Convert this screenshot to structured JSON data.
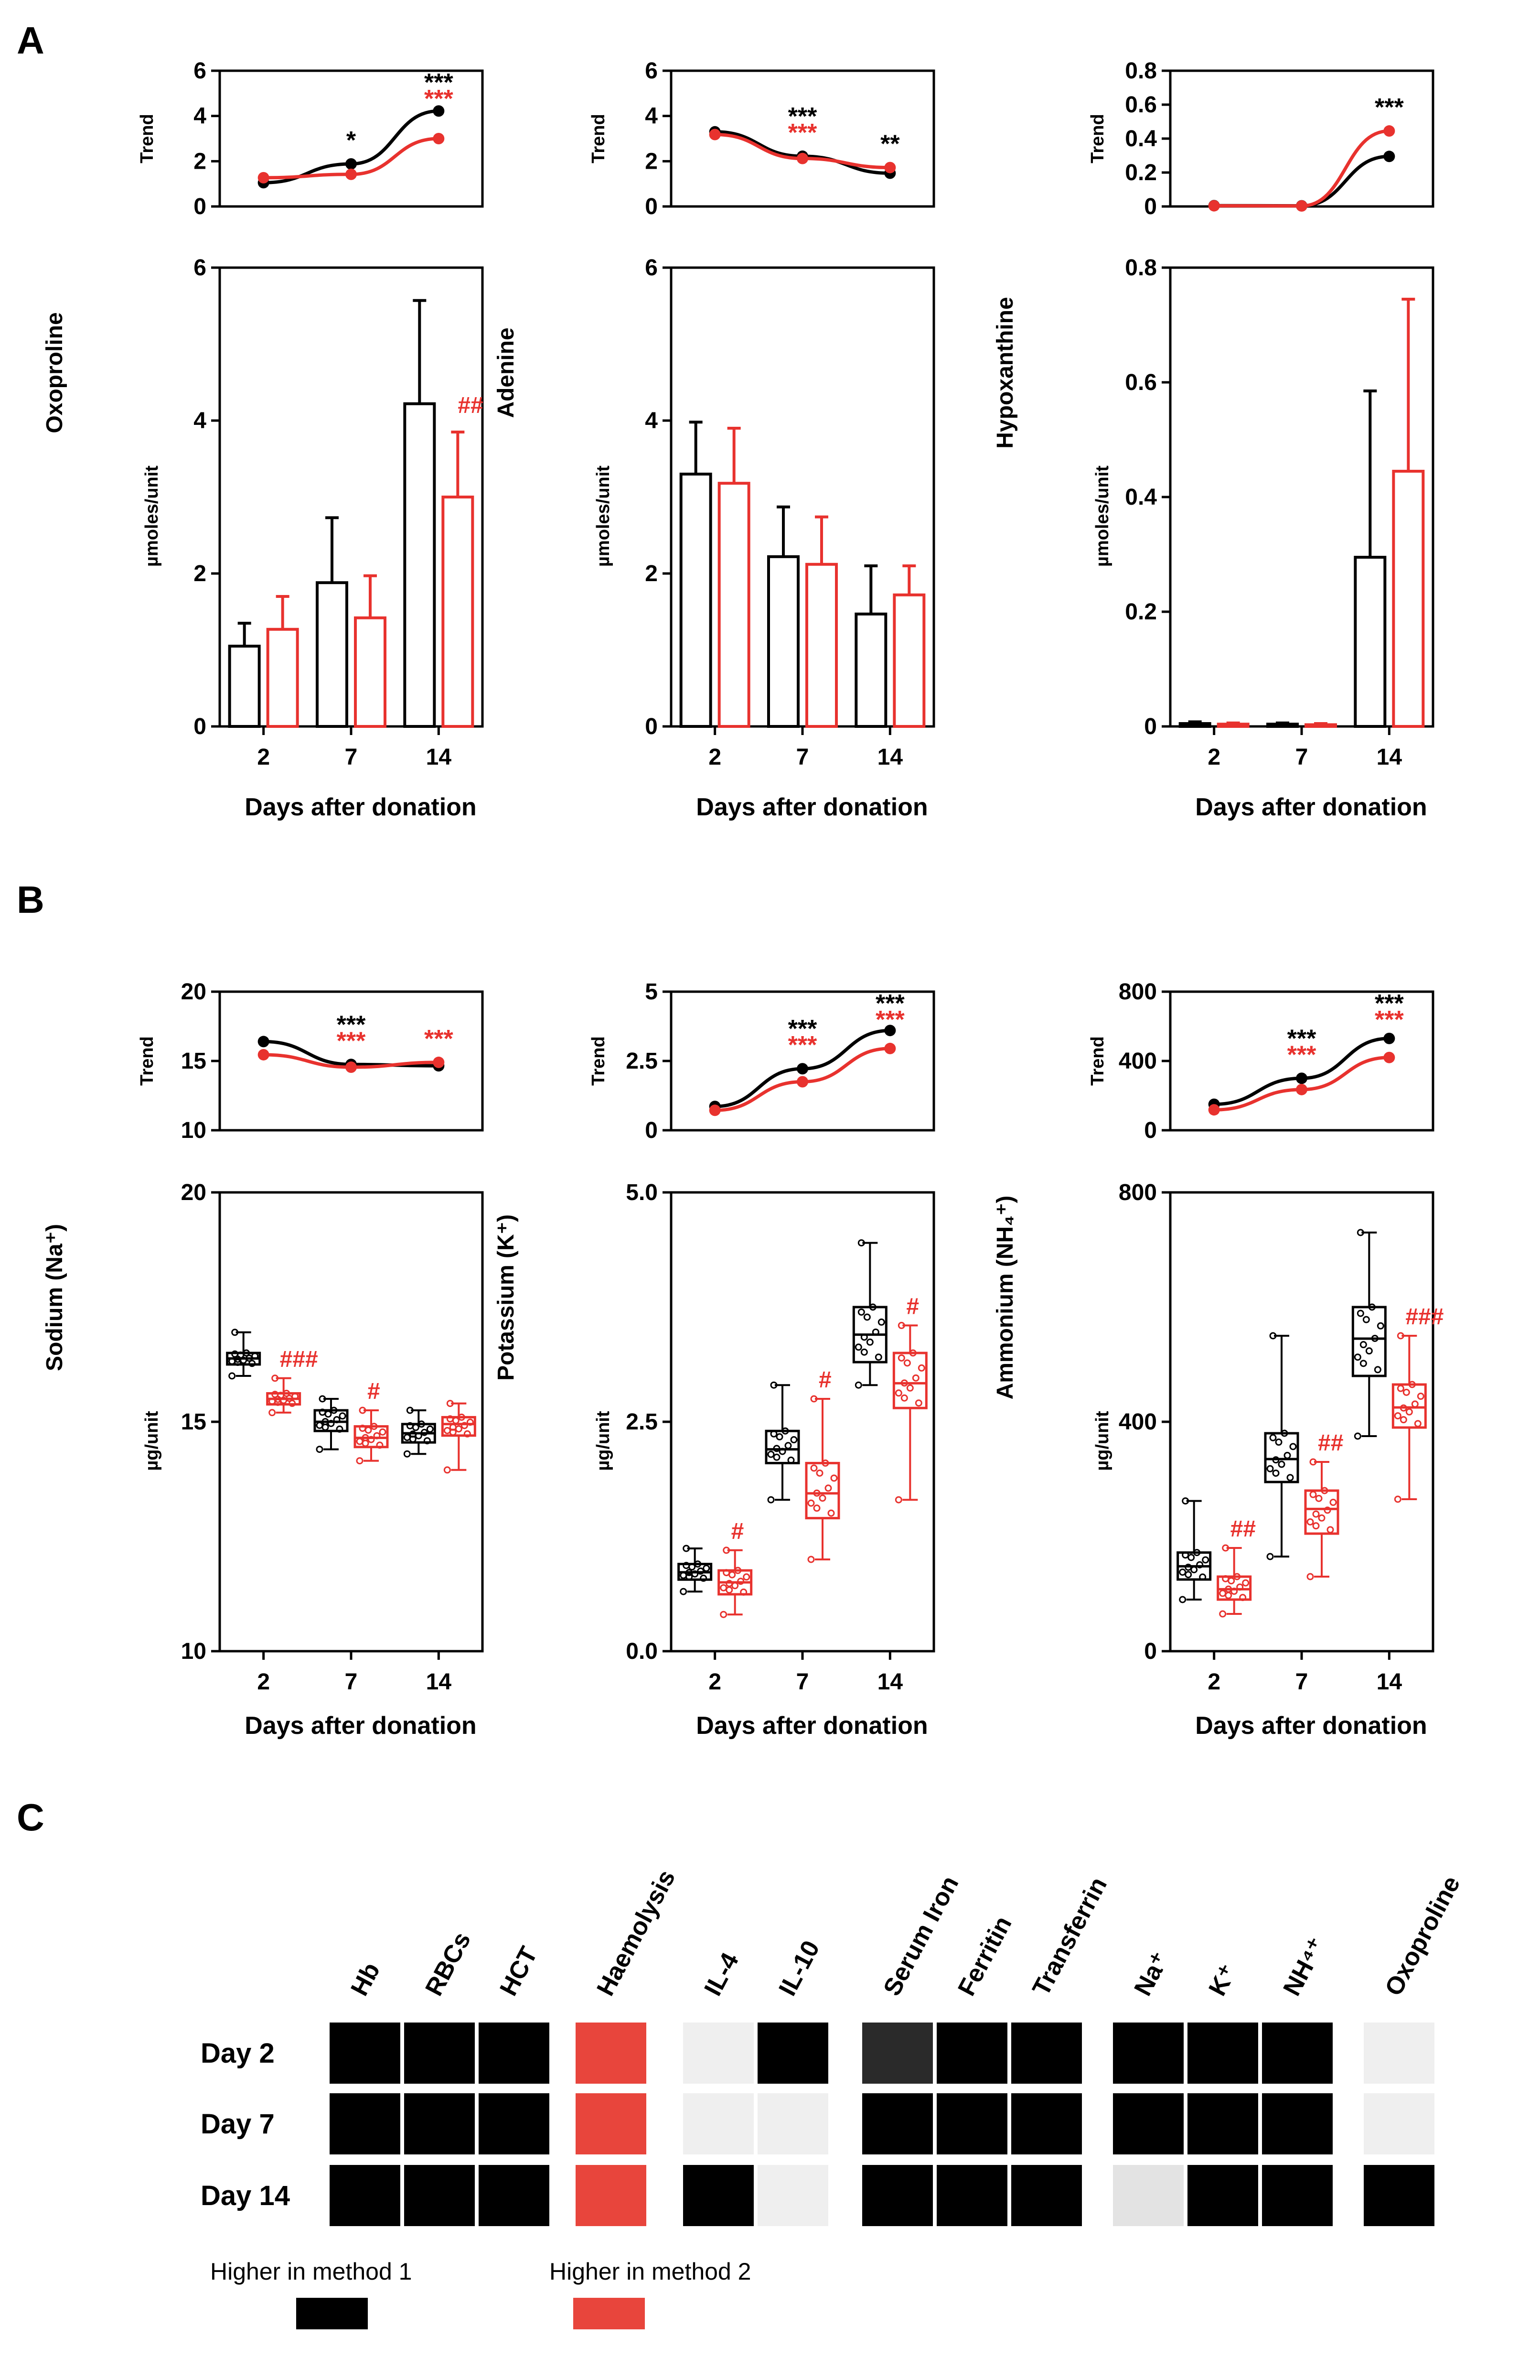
{
  "colors": {
    "method1": "#000000",
    "method2": "#e8322e"
  },
  "panels": {
    "a": "A",
    "b": "B",
    "c": "C"
  },
  "common": {
    "xlabel": "Days after donation",
    "trend_label": "Trend"
  },
  "chart_data": [
    {
      "id": "oxoproline",
      "type": "bar",
      "panel": "A",
      "ylabel": "Oxoproline",
      "yunit": "µmoles/unit",
      "categories": [
        "2",
        "7",
        "14"
      ],
      "xlabel": "Days after donation",
      "ylim": [
        0,
        6
      ],
      "yticks": [
        "0",
        "2",
        "4",
        "6"
      ],
      "ytick_values": [
        0,
        2,
        4,
        6
      ],
      "series": [
        {
          "name": "Method 1",
          "color": "#000000",
          "values": [
            1.05,
            1.88,
            4.22
          ],
          "errors": [
            0.3,
            0.85,
            1.35
          ]
        },
        {
          "name": "Method 2",
          "color": "#e8322e",
          "values": [
            1.27,
            1.42,
            3.0
          ],
          "errors": [
            0.43,
            0.55,
            0.85
          ]
        }
      ],
      "annotations": [
        {
          "category": "14",
          "text": "##",
          "color": "#e8322e"
        }
      ],
      "trend": {
        "ylim": [
          0,
          6
        ],
        "yticks": [
          "0",
          "2",
          "4",
          "6"
        ],
        "ytick_values": [
          0,
          2,
          4,
          6
        ],
        "series": [
          {
            "name": "Method 1",
            "color": "#000000",
            "values": [
              1.05,
              1.88,
              4.22
            ]
          },
          {
            "name": "Method 2",
            "color": "#e8322e",
            "values": [
              1.27,
              1.42,
              3.0
            ]
          }
        ],
        "annotations": [
          {
            "category": "7",
            "texts": [
              {
                "text": "*",
                "color": "#000000"
              }
            ]
          },
          {
            "category": "14",
            "texts": [
              {
                "text": "***",
                "color": "#000000"
              },
              {
                "text": "***",
                "color": "#e8322e"
              }
            ]
          }
        ]
      }
    },
    {
      "id": "adenine",
      "type": "bar",
      "panel": "A",
      "ylabel": "Adenine",
      "yunit": "µmoles/unit",
      "categories": [
        "2",
        "7",
        "14"
      ],
      "xlabel": "Days after donation",
      "ylim": [
        0,
        6
      ],
      "yticks": [
        "0",
        "2",
        "4",
        "6"
      ],
      "ytick_values": [
        0,
        2,
        4,
        6
      ],
      "series": [
        {
          "name": "Method 1",
          "color": "#000000",
          "values": [
            3.3,
            2.22,
            1.47
          ],
          "errors": [
            0.68,
            0.65,
            0.63
          ]
        },
        {
          "name": "Method 2",
          "color": "#e8322e",
          "values": [
            3.18,
            2.12,
            1.72
          ],
          "errors": [
            0.72,
            0.62,
            0.38
          ]
        }
      ],
      "annotations": [],
      "trend": {
        "ylim": [
          0,
          6
        ],
        "yticks": [
          "0",
          "2",
          "4",
          "6"
        ],
        "ytick_values": [
          0,
          2,
          4,
          6
        ],
        "series": [
          {
            "name": "Method 1",
            "color": "#000000",
            "values": [
              3.3,
              2.22,
              1.47
            ]
          },
          {
            "name": "Method 2",
            "color": "#e8322e",
            "values": [
              3.18,
              2.12,
              1.72
            ]
          }
        ],
        "annotations": [
          {
            "category": "7",
            "texts": [
              {
                "text": "***",
                "color": "#000000"
              },
              {
                "text": "***",
                "color": "#e8322e"
              }
            ]
          },
          {
            "category": "14",
            "texts": [
              {
                "text": "**",
                "color": "#000000"
              }
            ]
          }
        ]
      }
    },
    {
      "id": "hypoxanthine",
      "type": "bar",
      "panel": "A",
      "ylabel": "Hypoxanthine",
      "yunit": "µmoles/unit",
      "categories": [
        "2",
        "7",
        "14"
      ],
      "xlabel": "Days after donation",
      "ylim": [
        0,
        0.8
      ],
      "yticks": [
        "0",
        "0.2",
        "0.4",
        "0.6",
        "0.8"
      ],
      "ytick_values": [
        0,
        0.2,
        0.4,
        0.6,
        0.8
      ],
      "series": [
        {
          "name": "Method 1",
          "color": "#000000",
          "values": [
            0.005,
            0.004,
            0.295
          ],
          "errors": [
            0.003,
            0.002,
            0.29
          ]
        },
        {
          "name": "Method 2",
          "color": "#e8322e",
          "values": [
            0.004,
            0.003,
            0.445
          ],
          "errors": [
            0.002,
            0.002,
            0.3
          ]
        }
      ],
      "annotations": [],
      "trend": {
        "ylim": [
          0,
          0.8
        ],
        "yticks": [
          "0",
          "0.2",
          "0.4",
          "0.6",
          "0.8"
        ],
        "ytick_values": [
          0,
          0.2,
          0.4,
          0.6,
          0.8
        ],
        "series": [
          {
            "name": "Method 1",
            "color": "#000000",
            "values": [
              0.005,
              0.004,
              0.295
            ]
          },
          {
            "name": "Method 2",
            "color": "#e8322e",
            "values": [
              0.004,
              0.003,
              0.445
            ]
          }
        ],
        "annotations": [
          {
            "category": "14",
            "texts": [
              {
                "text": "***",
                "color": "#000000"
              }
            ]
          }
        ]
      }
    },
    {
      "id": "sodium",
      "type": "box",
      "panel": "B",
      "ylabel": "Sodium (Na⁺)",
      "yunit": "µg/unit",
      "categories": [
        "2",
        "7",
        "14"
      ],
      "xlabel": "Days after donation",
      "ylim": [
        10,
        20
      ],
      "yticks": [
        "10",
        "15",
        "20"
      ],
      "ytick_values": [
        10,
        15,
        20
      ],
      "series": [
        {
          "name": "Method 1",
          "color": "#000000",
          "boxes": [
            {
              "min": 16.0,
              "q1": 16.25,
              "median": 16.38,
              "q3": 16.5,
              "max": 16.95
            },
            {
              "min": 14.4,
              "q1": 14.8,
              "median": 15.0,
              "q3": 15.25,
              "max": 15.5
            },
            {
              "min": 14.3,
              "q1": 14.55,
              "median": 14.75,
              "q3": 14.95,
              "max": 15.25
            }
          ]
        },
        {
          "name": "Method 2",
          "color": "#e8322e",
          "boxes": [
            {
              "min": 15.2,
              "q1": 15.38,
              "median": 15.5,
              "q3": 15.62,
              "max": 15.95
            },
            {
              "min": 14.15,
              "q1": 14.45,
              "median": 14.65,
              "q3": 14.9,
              "max": 15.25
            },
            {
              "min": 13.95,
              "q1": 14.7,
              "median": 14.95,
              "q3": 15.1,
              "max": 15.4
            }
          ]
        }
      ],
      "annotations": [
        {
          "category": "2",
          "text": "###",
          "color": "#e8322e"
        },
        {
          "category": "7",
          "text": "#",
          "color": "#e8322e"
        }
      ],
      "trend": {
        "ylim": [
          10,
          20
        ],
        "yticks": [
          "10",
          "15",
          "20"
        ],
        "ytick_values": [
          10,
          15,
          20
        ],
        "series": [
          {
            "name": "Method 1",
            "color": "#000000",
            "values": [
              16.4,
              14.75,
              14.65
            ]
          },
          {
            "name": "Method 2",
            "color": "#e8322e",
            "values": [
              15.45,
              14.55,
              14.9
            ]
          }
        ],
        "annotations": [
          {
            "category": "7",
            "texts": [
              {
                "text": "***",
                "color": "#000000"
              },
              {
                "text": "***",
                "color": "#e8322e"
              }
            ]
          },
          {
            "category": "14",
            "texts": [
              {
                "text": "***",
                "color": "#e8322e"
              }
            ]
          }
        ]
      }
    },
    {
      "id": "potassium",
      "type": "box",
      "panel": "B",
      "ylabel": "Potassium (K⁺)",
      "yunit": "µg/unit",
      "categories": [
        "2",
        "7",
        "14"
      ],
      "xlabel": "Days after donation",
      "ylim": [
        0,
        5
      ],
      "yticks": [
        "0.0",
        "2.5",
        "5.0"
      ],
      "ytick_values": [
        0,
        2.5,
        5.0
      ],
      "series": [
        {
          "name": "Method 1",
          "color": "#000000",
          "boxes": [
            {
              "min": 0.65,
              "q1": 0.78,
              "median": 0.86,
              "q3": 0.95,
              "max": 1.12
            },
            {
              "min": 1.65,
              "q1": 2.05,
              "median": 2.2,
              "q3": 2.4,
              "max": 2.9
            },
            {
              "min": 2.9,
              "q1": 3.15,
              "median": 3.45,
              "q3": 3.75,
              "max": 4.45
            }
          ]
        },
        {
          "name": "Method 2",
          "color": "#e8322e",
          "boxes": [
            {
              "min": 0.4,
              "q1": 0.62,
              "median": 0.75,
              "q3": 0.88,
              "max": 1.1
            },
            {
              "min": 1.0,
              "q1": 1.45,
              "median": 1.72,
              "q3": 2.05,
              "max": 2.75
            },
            {
              "min": 1.65,
              "q1": 2.65,
              "median": 2.92,
              "q3": 3.25,
              "max": 3.55
            }
          ]
        }
      ],
      "annotations": [
        {
          "category": "2",
          "text": "#",
          "color": "#e8322e"
        },
        {
          "category": "7",
          "text": "#",
          "color": "#e8322e"
        },
        {
          "category": "14",
          "text": "#",
          "color": "#e8322e"
        }
      ],
      "trend": {
        "ylim": [
          0,
          5
        ],
        "yticks": [
          "0",
          "2.5",
          "5"
        ],
        "ytick_values": [
          0,
          2.5,
          5
        ],
        "series": [
          {
            "name": "Method 1",
            "color": "#000000",
            "values": [
              0.86,
              2.22,
              3.6
            ]
          },
          {
            "name": "Method 2",
            "color": "#e8322e",
            "values": [
              0.72,
              1.75,
              2.95
            ]
          }
        ],
        "annotations": [
          {
            "category": "7",
            "texts": [
              {
                "text": "***",
                "color": "#000000"
              },
              {
                "text": "***",
                "color": "#e8322e"
              }
            ]
          },
          {
            "category": "14",
            "texts": [
              {
                "text": "***",
                "color": "#000000"
              },
              {
                "text": "***",
                "color": "#e8322e"
              }
            ]
          }
        ]
      }
    },
    {
      "id": "ammonium",
      "type": "box",
      "panel": "B",
      "ylabel": "Ammonium (NH₄⁺)",
      "yunit": "µg/unit",
      "categories": [
        "2",
        "7",
        "14"
      ],
      "xlabel": "Days after donation",
      "ylim": [
        0,
        800
      ],
      "yticks": [
        "0",
        "400",
        "800"
      ],
      "ytick_values": [
        0,
        400,
        800
      ],
      "series": [
        {
          "name": "Method 1",
          "color": "#000000",
          "boxes": [
            {
              "min": 90,
              "q1": 125,
              "median": 148,
              "q3": 172,
              "max": 262
            },
            {
              "min": 165,
              "q1": 295,
              "median": 335,
              "q3": 380,
              "max": 550
            },
            {
              "min": 375,
              "q1": 480,
              "median": 545,
              "q3": 600,
              "max": 730
            }
          ]
        },
        {
          "name": "Method 2",
          "color": "#e8322e",
          "boxes": [
            {
              "min": 65,
              "q1": 90,
              "median": 108,
              "q3": 130,
              "max": 180
            },
            {
              "min": 130,
              "q1": 205,
              "median": 248,
              "q3": 280,
              "max": 330
            },
            {
              "min": 265,
              "q1": 390,
              "median": 425,
              "q3": 465,
              "max": 550
            }
          ]
        }
      ],
      "annotations": [
        {
          "category": "2",
          "text": "##",
          "color": "#e8322e"
        },
        {
          "category": "7",
          "text": "##",
          "color": "#e8322e"
        },
        {
          "category": "14",
          "text": "###",
          "color": "#e8322e"
        }
      ],
      "trend": {
        "ylim": [
          0,
          800
        ],
        "yticks": [
          "0",
          "400",
          "800"
        ],
        "ytick_values": [
          0,
          400,
          800
        ],
        "series": [
          {
            "name": "Method 1",
            "color": "#000000",
            "values": [
              150,
              300,
              530
            ]
          },
          {
            "name": "Method 2",
            "color": "#e8322e",
            "values": [
              118,
              235,
              420
            ]
          }
        ],
        "annotations": [
          {
            "category": "7",
            "texts": [
              {
                "text": "***",
                "color": "#000000"
              },
              {
                "text": "***",
                "color": "#e8322e"
              }
            ]
          },
          {
            "category": "14",
            "texts": [
              {
                "text": "***",
                "color": "#000000"
              },
              {
                "text": "***",
                "color": "#e8322e"
              }
            ]
          }
        ]
      }
    },
    {
      "id": "summary-heatmap",
      "type": "heatmap",
      "panel": "C",
      "groups": [
        {
          "columns": [
            "Hb",
            "RBCs",
            "HCT"
          ]
        },
        {
          "columns": [
            "Haemolysis"
          ]
        },
        {
          "columns": [
            "IL-4",
            "IL-10"
          ]
        },
        {
          "columns": [
            "Serum Iron",
            "Ferritin",
            "Transferrin"
          ]
        },
        {
          "columns": [
            "Na⁺",
            "K⁺",
            "NH⁴⁺"
          ]
        },
        {
          "columns": [
            "Oxoproline"
          ]
        }
      ],
      "rows": [
        "Day  2",
        "Day  7",
        "Day 14"
      ],
      "cells": [
        [
          "#000000",
          "#000000",
          "#000000",
          "#e8453c",
          "#efefef",
          "#000000",
          "#2a2a2a",
          "#000000",
          "#000000",
          "#000000",
          "#000000",
          "#000000",
          "#efefef"
        ],
        [
          "#000000",
          "#000000",
          "#000000",
          "#e8453c",
          "#efefef",
          "#efefef",
          "#000000",
          "#000000",
          "#000000",
          "#000000",
          "#000000",
          "#000000",
          "#efefef"
        ],
        [
          "#000000",
          "#000000",
          "#000000",
          "#e8453c",
          "#000000",
          "#efefef",
          "#000000",
          "#000000",
          "#000000",
          "#e3e3e3",
          "#000000",
          "#000000",
          "#000000"
        ]
      ],
      "legend": [
        {
          "label": "Higher in method 1",
          "color": "#000000"
        },
        {
          "label": "Higher in method 2",
          "color": "#e8453c"
        }
      ]
    }
  ]
}
